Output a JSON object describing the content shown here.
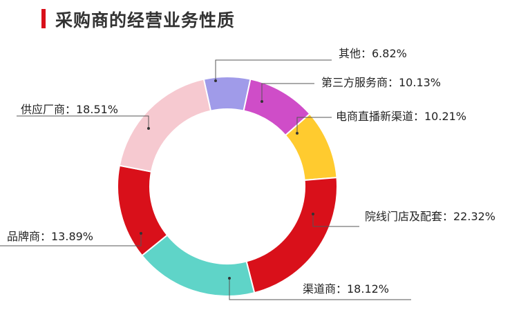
{
  "title": "采购商的经营业务性质",
  "colors": {
    "accent": "#d9101a",
    "leader": "#555555"
  },
  "chart_data": {
    "type": "pie",
    "variant": "donut",
    "title": "采购商的经营业务性质",
    "categories": [
      "其他",
      "第三方服务商",
      "电商直播新渠道",
      "院线门店及配套",
      "渠道商",
      "品牌商",
      "供应厂商"
    ],
    "values": [
      6.82,
      10.13,
      10.21,
      22.32,
      18.12,
      13.89,
      18.51
    ],
    "labels": [
      "其他：6.82%",
      "第三方服务商：10.13%",
      "电商直播新渠道：10.21%",
      "院线门店及配套：22.32%",
      "渠道商：18.12%",
      "品牌商：13.89%",
      "供应厂商：18.51%"
    ],
    "colors": [
      "#a09be9",
      "#cf4dc8",
      "#ffcb2f",
      "#d9101a",
      "#5fd4c8",
      "#d9101a",
      "#f6c9d0"
    ],
    "start_angle_deg": 347.6,
    "direction": "clockwise"
  }
}
